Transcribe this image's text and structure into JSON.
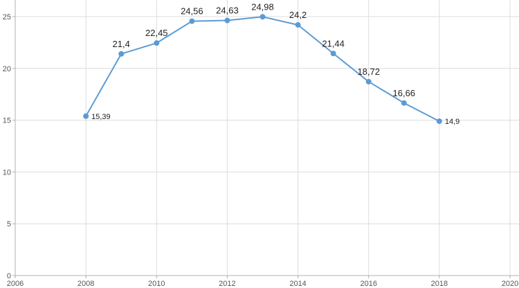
{
  "chart_data": {
    "type": "line",
    "title": "",
    "xlabel": "",
    "ylabel": "",
    "xlim": [
      2006,
      2020
    ],
    "ylim": [
      0,
      25
    ],
    "grid": true,
    "x_ticks": [
      "2006",
      "2008",
      "2010",
      "2012",
      "2014",
      "2016",
      "2018",
      "2020"
    ],
    "y_ticks": [
      "0",
      "5",
      "10",
      "15",
      "20",
      "25"
    ],
    "series": [
      {
        "color": "#5b9bd5",
        "x": [
          2008,
          2009,
          2010,
          2011,
          2012,
          2013,
          2014,
          2015,
          2016,
          2017,
          2018
        ],
        "values": [
          15.39,
          21.4,
          22.45,
          24.56,
          24.63,
          24.98,
          24.2,
          21.44,
          18.72,
          16.66,
          14.9
        ],
        "labels": [
          "15,39",
          "21,4",
          "22,45",
          "24,56",
          "24,63",
          "24,98",
          "24,2",
          "21,44",
          "18,72",
          "16,66",
          "14,9"
        ]
      }
    ]
  }
}
